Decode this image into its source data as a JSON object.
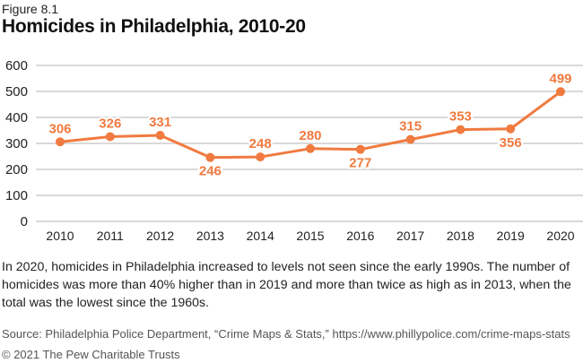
{
  "figure_label": "Figure 8.1",
  "title": "Homicides in Philadelphia, 2010-20",
  "caption": "In 2020, homicides in Philadelphia increased to levels not seen since the early 1990s. The number of homicides was more than 40% higher than in 2019 and more than twice as high as in 2013, when the total was the lowest since the 1960s.",
  "source": "Source: Philadelphia Police Department, “Crime Maps & Stats,” https://www.phillypolice.com/crime-maps-stats",
  "copyright": "© 2021 The Pew Charitable Trusts",
  "colors": {
    "series": "#f07a3f",
    "grid": "#d9d9d9",
    "axis_text": "#222222"
  },
  "chart_data": {
    "type": "line",
    "title": "Homicides in Philadelphia, 2010-20",
    "xlabel": "",
    "ylabel": "",
    "categories": [
      "2010",
      "2011",
      "2012",
      "2013",
      "2014",
      "2015",
      "2016",
      "2017",
      "2018",
      "2019",
      "2020"
    ],
    "series": [
      {
        "name": "Homicides",
        "values": [
          306,
          326,
          331,
          246,
          248,
          280,
          277,
          315,
          353,
          356,
          499
        ]
      }
    ],
    "label_positions": [
      "above",
      "above",
      "above",
      "below",
      "above",
      "above",
      "below",
      "above",
      "above",
      "below",
      "above"
    ],
    "ylim": [
      0,
      600
    ],
    "yticks": [
      0,
      100,
      200,
      300,
      400,
      500,
      600
    ],
    "grid": true,
    "legend": "none"
  }
}
